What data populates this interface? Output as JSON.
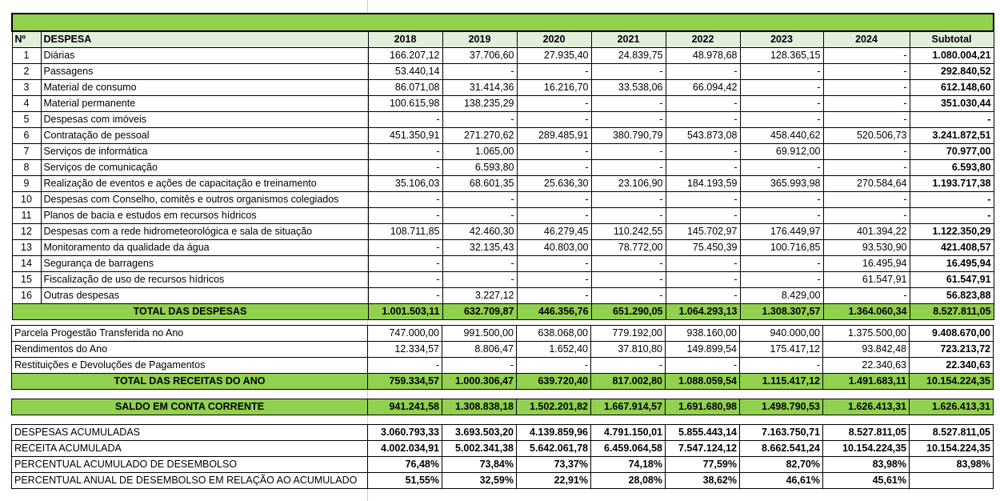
{
  "headers": {
    "no": "Nº",
    "despesa": "DESPESA",
    "years": [
      "2018",
      "2019",
      "2020",
      "2021",
      "2022",
      "2023",
      "2024"
    ],
    "subtotal": "Subtotal"
  },
  "rows": [
    {
      "n": "1",
      "label": "Diárias",
      "values": [
        "166.207,12",
        "37.706,60",
        "27.935,40",
        "24.839,75",
        "48.978,68",
        "128.365,15",
        "-"
      ],
      "subtotal": "1.080.004,21"
    },
    {
      "n": "2",
      "label": "Passagens",
      "values": [
        "53.440,14",
        "-",
        "-",
        "-",
        "-",
        "-",
        "-"
      ],
      "subtotal": "292.840,52"
    },
    {
      "n": "3",
      "label": "Material de consumo",
      "values": [
        "86.071,08",
        "31.414,36",
        "16.216,70",
        "33.538,06",
        "66.094,42",
        "-",
        "-"
      ],
      "subtotal": "612.148,60"
    },
    {
      "n": "4",
      "label": "Material permanente",
      "values": [
        "100.615,98",
        "138.235,29",
        "-",
        "-",
        "-",
        "-",
        "-"
      ],
      "subtotal": "351.030,44"
    },
    {
      "n": "5",
      "label": "Despesas com imóveis",
      "values": [
        "-",
        "-",
        "-",
        "-",
        "-",
        "-",
        "-"
      ],
      "subtotal": "-"
    },
    {
      "n": "6",
      "label": "Contratação de pessoal",
      "values": [
        "451.350,91",
        "271.270,62",
        "289.485,91",
        "380.790,79",
        "543.873,08",
        "458.440,62",
        "520.506,73"
      ],
      "subtotal": "3.241.872,51"
    },
    {
      "n": "7",
      "label": "Serviços de informática",
      "values": [
        "-",
        "1.065,00",
        "-",
        "-",
        "-",
        "69.912,00",
        "-"
      ],
      "subtotal": "70.977,00"
    },
    {
      "n": "8",
      "label": "Serviços de comunicação",
      "values": [
        "-",
        "6.593,80",
        "-",
        "-",
        "-",
        "-",
        "-"
      ],
      "subtotal": "6.593,80"
    },
    {
      "n": "9",
      "label": "Realização de eventos e ações de capacitação e treinamento",
      "values": [
        "35.106,03",
        "68.601,35",
        "25.636,30",
        "23.106,90",
        "184.193,59",
        "365.993,98",
        "270.584,64"
      ],
      "subtotal": "1.193.717,38"
    },
    {
      "n": "10",
      "label": "Despesas com Conselho, comitês e outros organismos colegiados",
      "values": [
        "-",
        "-",
        "-",
        "-",
        "-",
        "-",
        "-"
      ],
      "subtotal": "-"
    },
    {
      "n": "11",
      "label": "Planos de bacia e estudos em recursos hídricos",
      "values": [
        "-",
        "-",
        "-",
        "-",
        "-",
        "-",
        "-"
      ],
      "subtotal": "-"
    },
    {
      "n": "12",
      "label": "Despesas com a rede hidrometeorológica e sala de situação",
      "values": [
        "108.711,85",
        "42.460,30",
        "46.279,45",
        "110.242,55",
        "145.702,97",
        "176.449,97",
        "401.394,22"
      ],
      "subtotal": "1.122.350,29"
    },
    {
      "n": "13",
      "label": "Monitoramento da qualidade da água",
      "values": [
        "-",
        "32.135,43",
        "40.803,00",
        "78.772,00",
        "75.450,39",
        "100.716,85",
        "93.530,90"
      ],
      "subtotal": "421.408,57"
    },
    {
      "n": "14",
      "label": "Segurança de barragens",
      "values": [
        "-",
        "-",
        "-",
        "-",
        "-",
        "-",
        "16.495,94"
      ],
      "subtotal": "16.495,94"
    },
    {
      "n": "15",
      "label": "Fiscalização de uso de recursos hídricos",
      "values": [
        "-",
        "-",
        "-",
        "-",
        "-",
        "-",
        "61.547,91"
      ],
      "subtotal": "61.547,91"
    },
    {
      "n": "16",
      "label": "Outras despesas",
      "values": [
        "-",
        "3.227,12",
        "-",
        "-",
        "-",
        "8.429,00",
        "-"
      ],
      "subtotal": "56.823,88"
    }
  ],
  "total_despesas": {
    "label": "TOTAL DAS DESPESAS",
    "values": [
      "1.001.503,11",
      "632.709,87",
      "446.356,76",
      "651.290,05",
      "1.064.293,13",
      "1.308.307,57",
      "1.364.060,34"
    ],
    "subtotal": "8.527.811,05"
  },
  "receitas": [
    {
      "label": "Parcela Progestão Transferida no Ano",
      "values": [
        "747.000,00",
        "991.500,00",
        "638.068,00",
        "779.192,00",
        "938.160,00",
        "940.000,00",
        "1.375.500,00"
      ],
      "subtotal": "9.408.670,00"
    },
    {
      "label": "Rendimentos do Ano",
      "values": [
        "12.334,57",
        "8.806,47",
        "1.652,40",
        "37.810,80",
        "149.899,54",
        "175.417,12",
        "93.842,48"
      ],
      "subtotal": "723.213,72"
    },
    {
      "label": "Restituições e Devoluções de Pagamentos",
      "values": [
        "-",
        "-",
        "-",
        "-",
        "-",
        "-",
        "22.340,63"
      ],
      "subtotal": "22.340,63"
    }
  ],
  "total_receitas": {
    "label": "TOTAL DAS RECEITAS DO ANO",
    "values": [
      "759.334,57",
      "1.000.306,47",
      "639.720,40",
      "817.002,80",
      "1.088.059,54",
      "1.115.417,12",
      "1.491.683,11"
    ],
    "subtotal": "10.154.224,35"
  },
  "saldo": {
    "label": "SALDO EM CONTA CORRENTE",
    "values": [
      "941.241,58",
      "1.308.838,18",
      "1.502.201,82",
      "1.667.914,57",
      "1.691.680,98",
      "1.498.790,53",
      "1.626.413,31"
    ],
    "subtotal": "1.626.413,31"
  },
  "acumulados": [
    {
      "label": "DESPESAS ACUMULADAS",
      "values": [
        "3.060.793,33",
        "3.693.503,20",
        "4.139.859,96",
        "4.791.150,01",
        "5.855.443,14",
        "7.163.750,71",
        "8.527.811,05"
      ],
      "subtotal": "8.527.811,05"
    },
    {
      "label": "RECEITA ACUMULADA",
      "values": [
        "4.002.034,91",
        "5.002.341,38",
        "5.642.061,78",
        "6.459.064,58",
        "7.547.124,12",
        "8.662.541,24",
        "10.154.224,35"
      ],
      "subtotal": "10.154.224,35"
    },
    {
      "label": "PERCENTUAL ACUMULADO DE DESEMBOLSO",
      "values": [
        "76,48%",
        "73,84%",
        "73,37%",
        "74,18%",
        "77,59%",
        "82,70%",
        "83,98%"
      ],
      "subtotal": "83,98%"
    },
    {
      "label": "PERCENTUAL ANUAL DE DESEMBOLSO EM RELAÇÃO AO ACUMULADO",
      "values": [
        "51,55%",
        "32,59%",
        "22,91%",
        "28,08%",
        "38,62%",
        "46,61%",
        "45,61%"
      ],
      "subtotal": ""
    }
  ]
}
